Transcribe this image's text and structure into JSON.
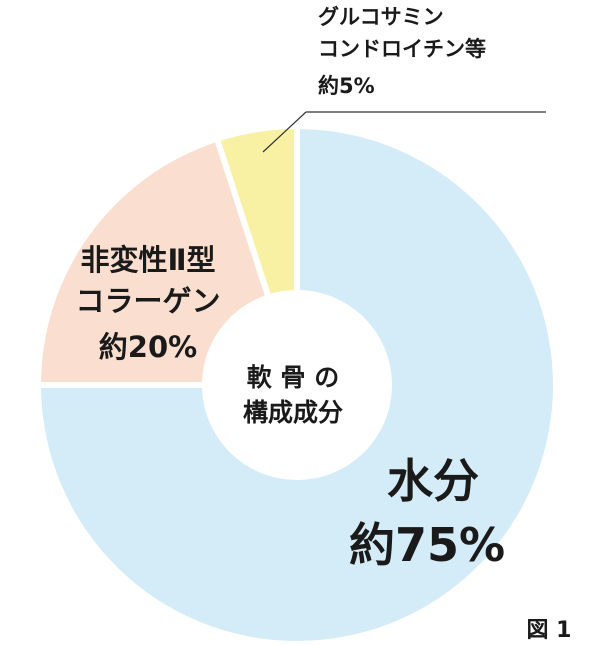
{
  "chart_data": {
    "type": "pie",
    "title": "",
    "center_label": [
      "軟 骨 の",
      "構成成分"
    ],
    "figure_label": "図 1",
    "slices": [
      {
        "label_lines": [
          "水分",
          "約75%"
        ],
        "value": 75,
        "color": "#d4ecf8"
      },
      {
        "label_lines": [
          "非変性Ⅱ型",
          "コラーゲン",
          "約20%"
        ],
        "value": 20,
        "color": "#fadfd0"
      },
      {
        "label_lines": [
          "グルコサミン",
          "コンドロイチン等",
          "約5%"
        ],
        "value": 5,
        "color": "#f8f1a4"
      }
    ]
  }
}
